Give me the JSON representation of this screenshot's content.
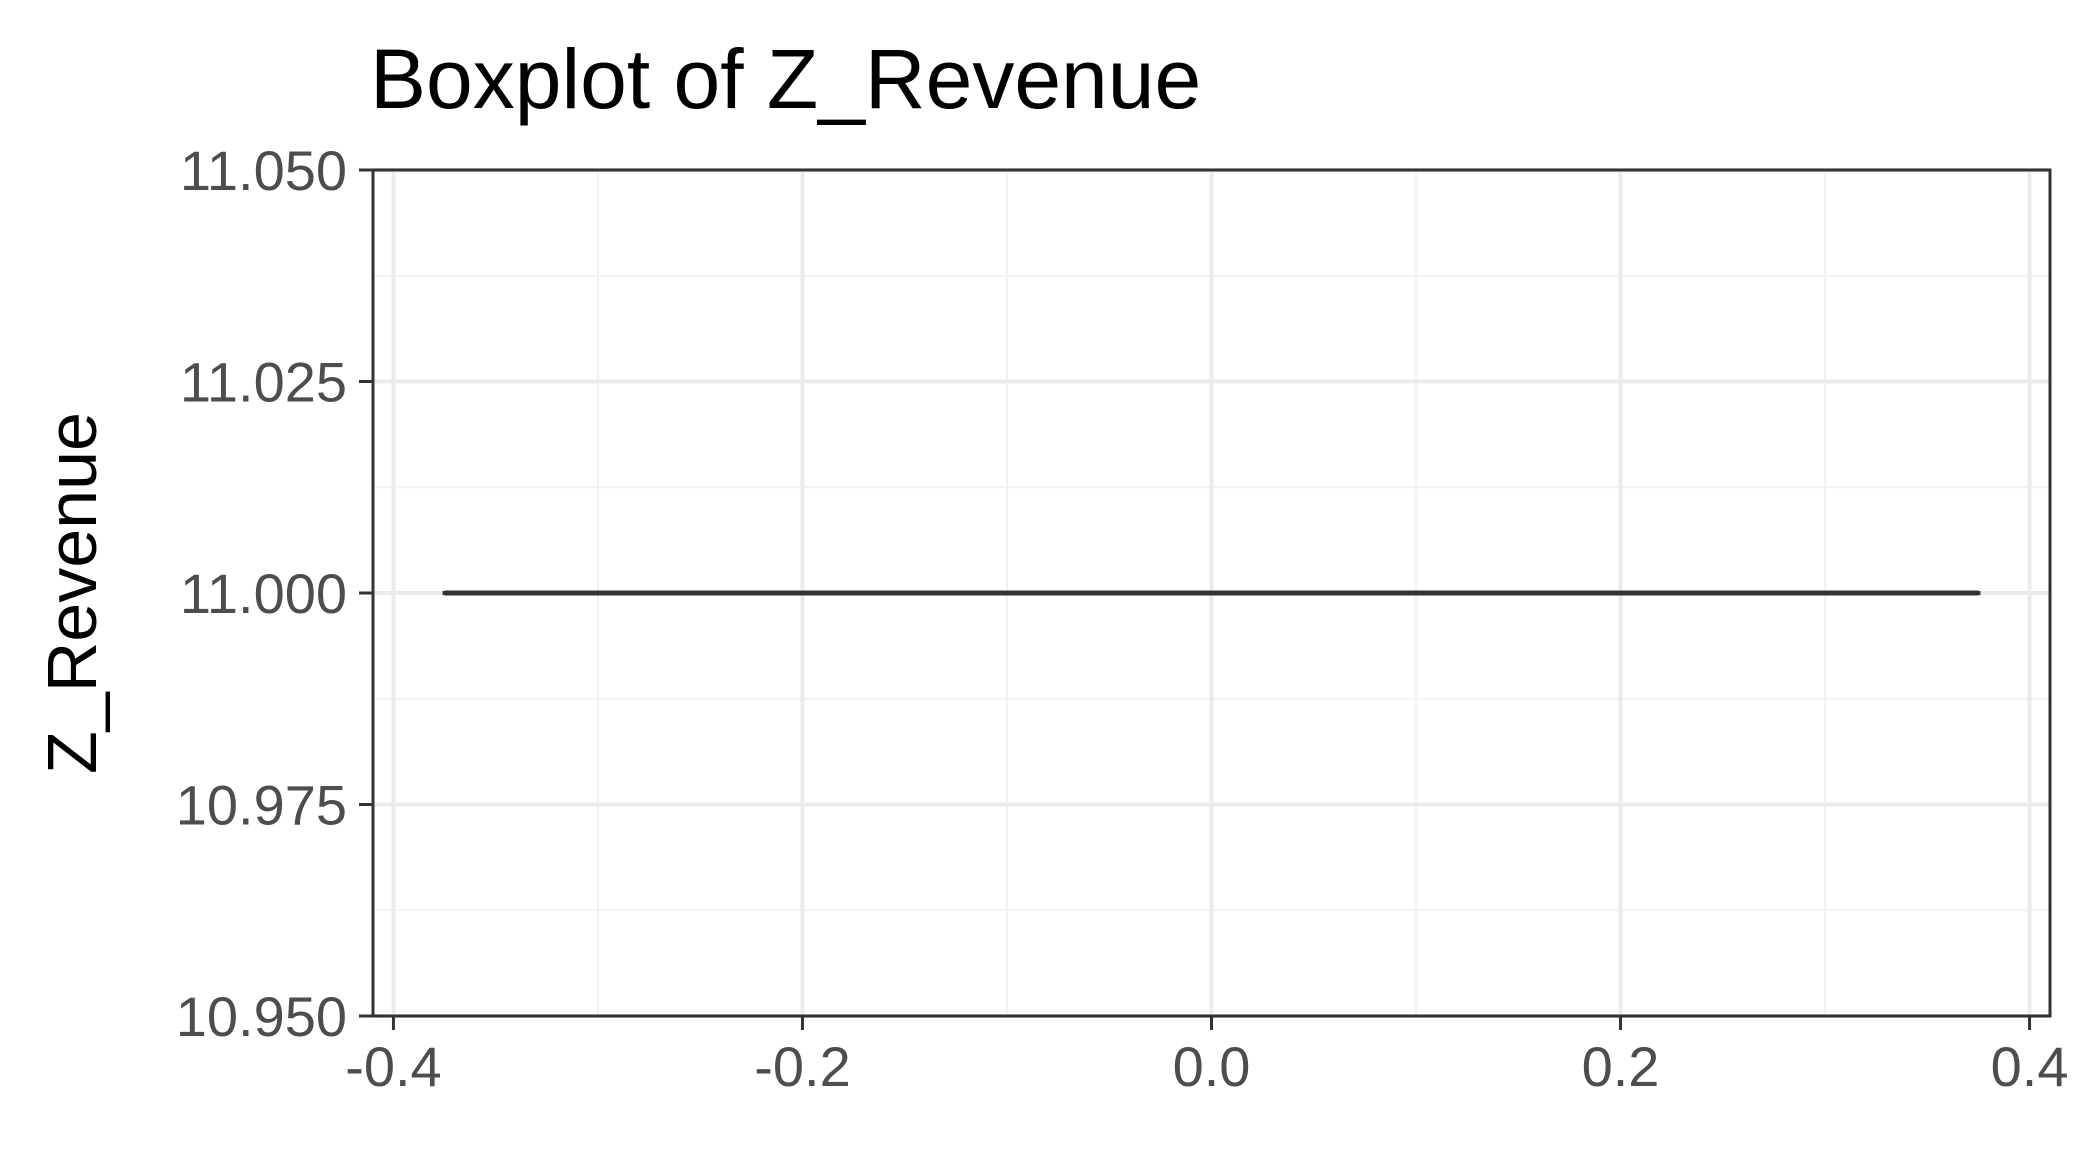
{
  "chart_data": {
    "type": "boxplot",
    "title": "Boxplot of Z_Revenue",
    "xlabel": "",
    "ylabel": "Z_Revenue",
    "xlim": [
      -0.41,
      0.41
    ],
    "ylim": [
      10.95,
      11.05
    ],
    "x_ticks": [
      -0.4,
      -0.2,
      0.0,
      0.2,
      0.4
    ],
    "x_tick_labels": [
      "-0.4",
      "-0.2",
      "0.0",
      "0.2",
      "0.4"
    ],
    "y_ticks": [
      10.95,
      10.975,
      11.0,
      11.025,
      11.05
    ],
    "y_tick_labels": [
      "10.950",
      "10.975",
      "11.000",
      "11.025",
      "11.050"
    ],
    "grid": true,
    "legend": "none",
    "boxes": [
      {
        "x_center": 0.0,
        "x_min": -0.375,
        "x_max": 0.375,
        "min": 11.0,
        "q1": 11.0,
        "median": 11.0,
        "q3": 11.0,
        "max": 11.0
      }
    ],
    "colors": {
      "panel_border": "#333333",
      "grid_major": "#ebebeb",
      "grid_minor": "#f2f2f2",
      "box_line": "#333333",
      "tick_label": "#4d4d4d"
    }
  }
}
